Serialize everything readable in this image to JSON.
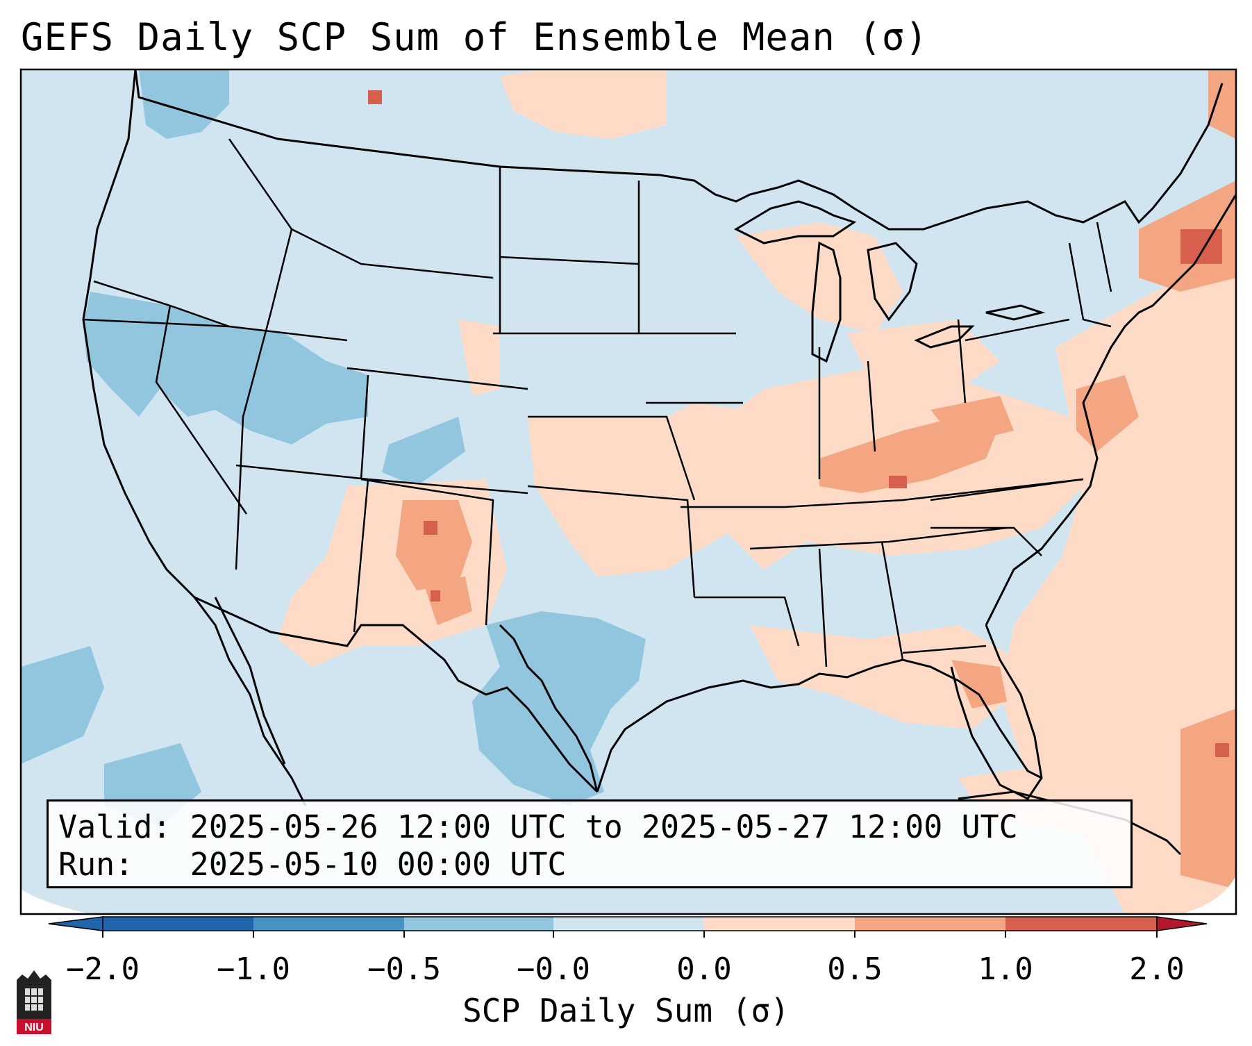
{
  "title": "GEFS Daily SCP Sum of Ensemble Mean (σ)",
  "colorbar": {
    "label": "SCP Daily Sum (σ)",
    "ticks": [
      "−2.0",
      "−1.0",
      "−0.5",
      "−0.0",
      "0.0",
      "0.5",
      "1.0",
      "2.0"
    ],
    "colors": [
      "#2166ac",
      "#4393c3",
      "#92c5de",
      "#d1e5f0",
      "#fddbc7",
      "#f4a582",
      "#d6604d",
      "#b2182b"
    ],
    "extend": "both"
  },
  "info_box": {
    "valid_prefix": "Valid:",
    "valid_range": "2025-05-26 12:00 UTC to 2025-05-27 12:00 UTC",
    "run_prefix": "Run:",
    "run_time": "2025-05-10 00:00 UTC"
  },
  "logo": {
    "text": "NIU"
  },
  "map": {
    "background_color": "#d1e5f0",
    "projection": "Lambert conformal (CONUS)",
    "features": [
      "coastlines",
      "state borders",
      "country borders"
    ],
    "anomaly_regions": [
      {
        "name": "Southwest",
        "color": "#fddbc7"
      },
      {
        "name": "New Mexico",
        "color": "#f4a582"
      },
      {
        "name": "Southern Plains",
        "color": "#fddbc7"
      },
      {
        "name": "Ohio Valley",
        "color": "#f4a582"
      },
      {
        "name": "Great Basin",
        "color": "#92c5de"
      },
      {
        "name": "West Texas",
        "color": "#92c5de"
      },
      {
        "name": "Northeast",
        "color": "#d6604d"
      },
      {
        "name": "Western Atlantic",
        "color": "#fddbc7"
      }
    ]
  }
}
